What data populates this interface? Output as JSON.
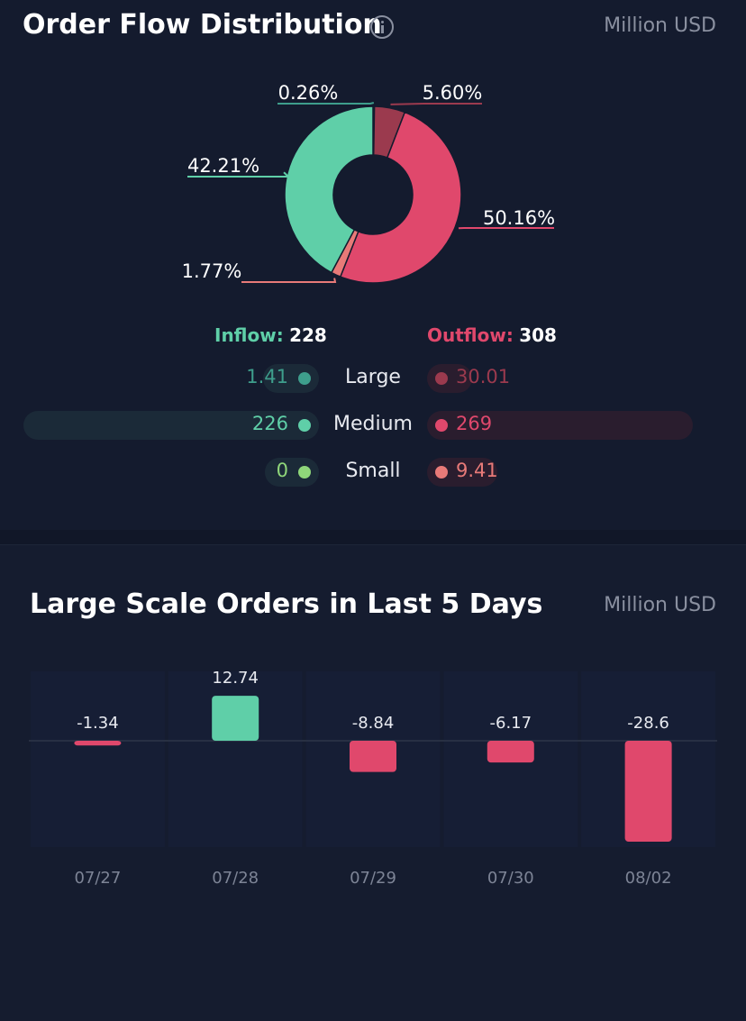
{
  "distribution": {
    "title": "Order Flow Distribution",
    "unit": "Million USD",
    "inflow_label": "Inflow:",
    "inflow_value": "228",
    "outflow_label": "Outflow:",
    "outflow_value": "308",
    "rows": [
      {
        "label": "Large",
        "inflow": "1.41",
        "outflow": "30.01"
      },
      {
        "label": "Medium",
        "inflow": "226",
        "outflow": "269"
      },
      {
        "label": "Small",
        "inflow": "0",
        "outflow": "9.41"
      }
    ]
  },
  "large_orders": {
    "title": "Large Scale Orders in Last 5 Days",
    "unit": "Million USD"
  },
  "colors": {
    "inflow_large": "#3e9e8c",
    "inflow_medium": "#5fcfa8",
    "inflow_small": "#8fd67a",
    "outflow_large": "#9b3a4e",
    "outflow_medium": "#e0486c",
    "outflow_small": "#e87a78",
    "positive_bar": "#5fcfa8",
    "negative_bar": "#e0486c"
  },
  "chart_data": [
    {
      "type": "pie",
      "donut": true,
      "slices": [
        {
          "label": "0.26%",
          "value": 0.26,
          "color": "#3e9e8c"
        },
        {
          "label": "5.60%",
          "value": 5.6,
          "color": "#9b3a4e"
        },
        {
          "label": "50.16%",
          "value": 50.16,
          "color": "#e0486c"
        },
        {
          "label": "1.77%",
          "value": 1.77,
          "color": "#e87a78"
        },
        {
          "label": "42.21%",
          "value": 42.21,
          "color": "#5fcfa8"
        }
      ]
    },
    {
      "type": "bar",
      "categories": [
        "07/27",
        "07/28",
        "07/29",
        "07/30",
        "08/02"
      ],
      "values": [
        -1.34,
        12.74,
        -8.84,
        -6.17,
        -28.6
      ],
      "value_labels": [
        "-1.34",
        "12.74",
        "-8.84",
        "-6.17",
        "-28.6"
      ],
      "ylim": [
        -28.6,
        12.74
      ]
    }
  ]
}
